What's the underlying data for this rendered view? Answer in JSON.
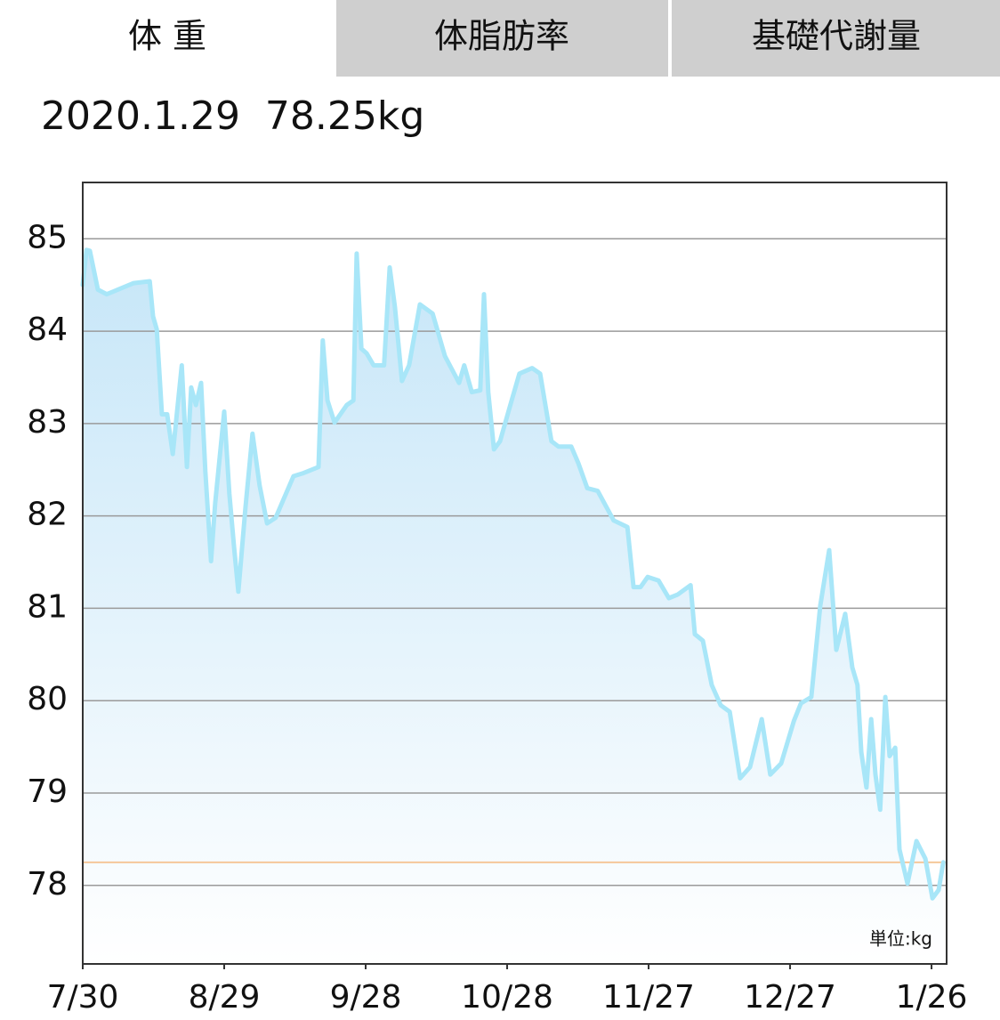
{
  "tabs": [
    "体 重",
    "体脂肪率",
    "基礎代謝量"
  ],
  "header": "2020.1.29  78.25kg",
  "chart_data": {
    "type": "area-line",
    "unit_label": "単位:kg",
    "color": "#a8e6f8",
    "fill_color": "#c6e6f8",
    "grid": true,
    "reference_line": {
      "value": 78.25,
      "color": "#f5c89a"
    },
    "xlim": [
      0,
      183.2
    ],
    "xticks": [
      {
        "value": 0,
        "label": "7/30"
      },
      {
        "value": 30,
        "label": "8/29"
      },
      {
        "value": 60,
        "label": "9/28"
      },
      {
        "value": 90,
        "label": "10/28"
      },
      {
        "value": 120,
        "label": "11/27"
      },
      {
        "value": 150,
        "label": "12/27"
      },
      {
        "value": 180,
        "label": "1/26"
      }
    ],
    "ylim": [
      77.15,
      85.61
    ],
    "yticks": [
      78,
      79,
      80,
      81,
      82,
      83,
      84,
      85
    ],
    "x": [
      0,
      0.8,
      1.5,
      3.2,
      5.1,
      10.8,
      14.2,
      14.9,
      15.7,
      16.8,
      17.9,
      19.1,
      21.0,
      22.1,
      23.0,
      24.0,
      25.1,
      26.0,
      27.2,
      28.1,
      30.0,
      31.1,
      32.1,
      33.0,
      34.5,
      36.0,
      37.5,
      39.1,
      40.9,
      44.7,
      46.6,
      50.0,
      50.9,
      51.9,
      53.4,
      56.0,
      57.4,
      58.1,
      59.1,
      60.2,
      61.7,
      63.9,
      65.1,
      66.2,
      67.7,
      69.2,
      71.5,
      74.2,
      76.8,
      79.8,
      80.9,
      82.5,
      84.3,
      85.1,
      86.0,
      87.2,
      88.5,
      90.4,
      92.6,
      95.3,
      97.0,
      99.4,
      100.9,
      103.6,
      105.1,
      107.0,
      109.2,
      112.6,
      115.5,
      116.8,
      118.3,
      119.8,
      122.1,
      124.3,
      126.2,
      128.9,
      129.8,
      131.5,
      133.4,
      135.3,
      137.2,
      139.4,
      141.5,
      144.0,
      145.8,
      148.1,
      150.8,
      152.3,
      154.5,
      156.4,
      158.3,
      159.8,
      161.7,
      163.2,
      164.3,
      165.1,
      166.2,
      167.2,
      168.1,
      169.1,
      170.2,
      171.1,
      172.3,
      173.2,
      174.9,
      176.8,
      178.7,
      180.2,
      181.5,
      182.5
    ],
    "values": [
      84.5,
      84.88,
      84.87,
      84.45,
      84.4,
      84.52,
      84.54,
      84.16,
      84.02,
      83.1,
      83.1,
      82.67,
      83.63,
      82.53,
      83.39,
      83.2,
      83.44,
      82.48,
      81.51,
      82.14,
      83.13,
      82.24,
      81.66,
      81.18,
      82.09,
      82.89,
      82.33,
      81.92,
      81.98,
      82.43,
      82.46,
      82.53,
      83.9,
      83.25,
      83.01,
      83.2,
      83.25,
      84.84,
      83.81,
      83.76,
      83.63,
      83.63,
      84.69,
      84.26,
      83.46,
      83.63,
      84.29,
      84.19,
      83.73,
      83.44,
      83.63,
      83.34,
      83.36,
      84.4,
      83.34,
      82.72,
      82.81,
      83.15,
      83.54,
      83.6,
      83.54,
      82.81,
      82.75,
      82.75,
      82.57,
      82.3,
      82.27,
      81.95,
      81.88,
      81.23,
      81.23,
      81.34,
      81.3,
      81.11,
      81.15,
      81.25,
      80.72,
      80.65,
      80.17,
      79.95,
      79.88,
      79.16,
      79.28,
      79.8,
      79.2,
      79.32,
      79.78,
      79.97,
      80.04,
      81.03,
      81.63,
      80.55,
      80.94,
      80.36,
      80.17,
      79.44,
      79.06,
      79.8,
      79.2,
      78.82,
      80.04,
      79.4,
      79.49,
      78.39,
      78.02,
      78.48,
      78.29,
      77.86,
      77.95,
      78.25
    ]
  }
}
